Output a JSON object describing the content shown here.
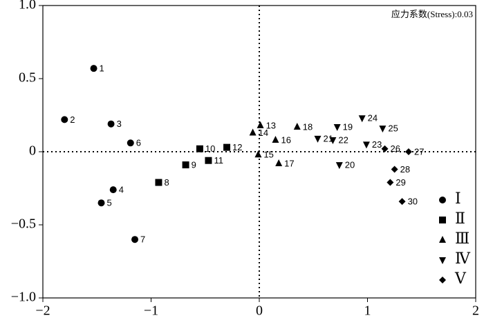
{
  "chart_data": {
    "type": "scatter",
    "annotation": "应力系数(Stress):0.03",
    "xlim": [
      -2,
      2
    ],
    "ylim": [
      -1,
      1
    ],
    "xticks": [
      {
        "value": -2,
        "label": "−2"
      },
      {
        "value": -1,
        "label": "−1"
      },
      0,
      1,
      2
    ],
    "yticks": [
      {
        "value": 1,
        "label": "1.0"
      },
      {
        "value": 0.5,
        "label": "0.5"
      },
      0,
      {
        "value": -0.5,
        "label": "−0.5"
      },
      {
        "value": -1,
        "label": "−1.0"
      }
    ],
    "legend": "lower right",
    "series": [
      {
        "name": "Ⅰ",
        "marker": "circle",
        "color": "#000000",
        "labels": [
          "1",
          "2",
          "3",
          "4",
          "5",
          "6",
          "7"
        ],
        "x": [
          -1.53,
          -1.8,
          -1.37,
          -1.35,
          -1.46,
          -1.19,
          -1.15
        ],
        "values": [
          0.57,
          0.22,
          0.19,
          -0.26,
          -0.35,
          0.06,
          -0.6
        ]
      },
      {
        "name": "Ⅱ",
        "marker": "square",
        "color": "#000000",
        "labels": [
          "8",
          "9",
          "10",
          "11",
          "12"
        ],
        "x": [
          -0.93,
          -0.68,
          -0.55,
          -0.47,
          -0.3
        ],
        "values": [
          -0.21,
          -0.09,
          0.02,
          -0.06,
          0.03
        ]
      },
      {
        "name": "Ⅲ",
        "marker": "triangle-up",
        "color": "#000000",
        "labels": [
          "13",
          "14",
          "15",
          "16",
          "17",
          "18"
        ],
        "x": [
          0.01,
          -0.06,
          -0.01,
          0.15,
          0.18,
          0.35
        ],
        "values": [
          0.18,
          0.13,
          -0.02,
          0.08,
          -0.08,
          0.17
        ]
      },
      {
        "name": "Ⅳ",
        "marker": "triangle-down",
        "color": "#000000",
        "labels": [
          "19",
          "20",
          "21",
          "22",
          "23",
          "24",
          "25"
        ],
        "x": [
          0.72,
          0.74,
          0.54,
          0.68,
          0.99,
          0.95,
          1.14
        ],
        "values": [
          0.17,
          -0.09,
          0.09,
          0.08,
          0.05,
          0.23,
          0.16
        ]
      },
      {
        "name": "Ⅴ",
        "marker": "diamond",
        "color": "#000000",
        "labels": [
          "26",
          "27",
          "28",
          "29",
          "30"
        ],
        "x": [
          1.16,
          1.38,
          1.25,
          1.21,
          1.32
        ],
        "values": [
          0.02,
          0.0,
          -0.12,
          -0.21,
          -0.34
        ]
      }
    ]
  }
}
